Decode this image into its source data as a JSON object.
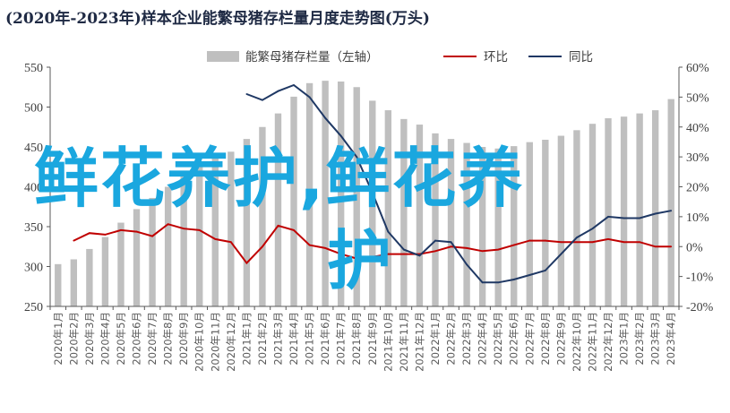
{
  "title": "(2020年-2023年)样本企业能繁母猪存栏量月度走势图(万头)",
  "watermark": [
    "鲜花养护,鲜花养",
    "护"
  ],
  "colors": {
    "bar": "#bfbfbf",
    "huanbi": "#c00000",
    "tongbi": "#1f3864",
    "axis": "#595959"
  },
  "chart_data": {
    "type": "bar",
    "categories": [
      "2020年1月",
      "2020年2月",
      "2020年3月",
      "2020年4月",
      "2020年5月",
      "2020年6月",
      "2020年7月",
      "2020年8月",
      "2020年9月",
      "2020年10月",
      "2020年11月",
      "2020年12月",
      "2021年1月",
      "2021年2月",
      "2021年3月",
      "2021年4月",
      "2021年5月",
      "2021年6月",
      "2021年7月",
      "2021年8月",
      "2021年9月",
      "2021年10月",
      "2021年11月",
      "2021年12月",
      "2022年1月",
      "2022年2月",
      "2022年3月",
      "2022年4月",
      "2022年5月",
      "2022年6月",
      "2022年7月",
      "2022年8月",
      "2022年9月",
      "2022年10月",
      "2022年11月",
      "2022年12月",
      "2023年1月",
      "2023年2月",
      "2023年3月",
      "2023年4月"
    ],
    "series": [
      {
        "name": "能繁母猪存栏量（左轴）",
        "type": "bar",
        "axis": "left",
        "values": [
          303,
          309,
          322,
          337,
          355,
          372,
          386,
          400,
          416,
          428,
          437,
          444,
          460,
          475,
          492,
          513,
          530,
          533,
          532,
          525,
          508,
          496,
          485,
          478,
          467,
          460,
          455,
          450,
          448,
          451,
          456,
          459,
          464,
          471,
          479,
          486,
          488,
          492,
          496,
          510
        ]
      },
      {
        "name": "环比",
        "type": "line",
        "axis": "right",
        "values": [
          null,
          2,
          4.5,
          4,
          5.5,
          5,
          3.5,
          7.5,
          6,
          5.5,
          2.5,
          1.5,
          -5.5,
          0,
          7,
          5.5,
          0.5,
          -0.5,
          -2.5,
          -4,
          -3.5,
          -2.5,
          -2.5,
          -2.5,
          -1.5,
          0,
          -0.5,
          -1.5,
          -1,
          0.5,
          2,
          2,
          1.5,
          1.5,
          1.5,
          2.5,
          1.5,
          1.5,
          0,
          0
        ]
      },
      {
        "name": "同比",
        "type": "line",
        "axis": "right",
        "values": [
          null,
          null,
          null,
          null,
          null,
          null,
          null,
          null,
          null,
          null,
          null,
          null,
          51,
          49,
          52,
          54,
          50,
          43,
          37,
          30,
          18,
          5,
          -1,
          -3,
          2,
          1.5,
          -6,
          -12,
          -12,
          -11,
          -9.5,
          -8,
          -2.5,
          3,
          6,
          10,
          9.5,
          9.5,
          11,
          12
        ]
      }
    ],
    "y_left": {
      "min": 250,
      "max": 550,
      "ticks": [
        250,
        300,
        350,
        400,
        450,
        500,
        550
      ]
    },
    "y_right": {
      "min": -20,
      "max": 60,
      "ticks": [
        "-20%",
        "-10%",
        "0%",
        "10%",
        "20%",
        "30%",
        "40%",
        "50%",
        "60%"
      ]
    },
    "legend_position": "top",
    "grid": false
  }
}
